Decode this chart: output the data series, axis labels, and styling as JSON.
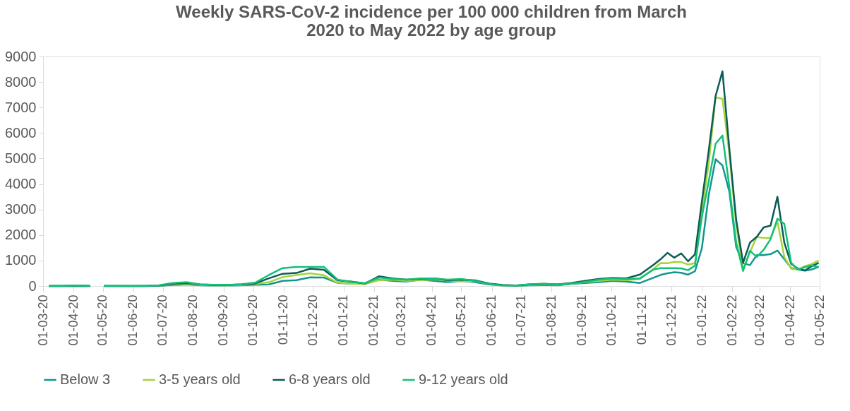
{
  "chart_data": {
    "type": "line",
    "title": "Weekly SARS-CoV-2 incidence per 100 000 children from March 2020 to May 2022 by age group",
    "x": [
      "2020-03-07",
      "2020-03-21",
      "2020-04-04",
      "2020-04-18",
      "2020-04-25",
      "2020-05-02",
      "2020-05-16",
      "2020-05-30",
      "2020-06-13",
      "2020-06-27",
      "2020-07-11",
      "2020-07-25",
      "2020-08-08",
      "2020-08-22",
      "2020-09-05",
      "2020-09-19",
      "2020-10-03",
      "2020-10-17",
      "2020-10-31",
      "2020-11-14",
      "2020-11-28",
      "2020-12-12",
      "2020-12-26",
      "2021-01-09",
      "2021-01-23",
      "2021-02-06",
      "2021-02-20",
      "2021-03-06",
      "2021-03-20",
      "2021-04-03",
      "2021-04-17",
      "2021-05-01",
      "2021-05-15",
      "2021-05-29",
      "2021-06-12",
      "2021-06-26",
      "2021-07-10",
      "2021-07-24",
      "2021-08-07",
      "2021-08-21",
      "2021-09-04",
      "2021-09-18",
      "2021-10-02",
      "2021-10-16",
      "2021-10-30",
      "2021-11-13",
      "2021-11-20",
      "2021-11-27",
      "2021-12-04",
      "2021-12-11",
      "2021-12-18",
      "2021-12-25",
      "2022-01-01",
      "2022-01-08",
      "2022-01-15",
      "2022-01-22",
      "2022-01-29",
      "2022-02-05",
      "2022-02-12",
      "2022-02-19",
      "2022-02-26",
      "2022-03-05",
      "2022-03-12",
      "2022-03-19",
      "2022-03-26",
      "2022-04-02",
      "2022-04-09",
      "2022-04-16",
      "2022-04-23",
      "2022-04-30"
    ],
    "series": [
      {
        "name": "Below 3",
        "color": "#15958f",
        "values": [
          0,
          0,
          10,
          0,
          null,
          0,
          0,
          0,
          0,
          10,
          40,
          60,
          30,
          20,
          20,
          30,
          50,
          60,
          200,
          230,
          340,
          330,
          120,
          100,
          80,
          250,
          200,
          170,
          250,
          200,
          150,
          200,
          150,
          60,
          20,
          10,
          30,
          40,
          30,
          80,
          120,
          150,
          200,
          170,
          120,
          330,
          435,
          500,
          540,
          520,
          445,
          575,
          1480,
          3560,
          4970,
          4730,
          3700,
          1530,
          890,
          820,
          1210,
          1210,
          1250,
          1390,
          1050,
          710,
          650,
          600,
          650,
          750
        ]
      },
      {
        "name": "3-5 years old",
        "color": "#a5d43c",
        "values": [
          null,
          null,
          null,
          null,
          null,
          null,
          null,
          null,
          null,
          20,
          60,
          90,
          40,
          30,
          30,
          40,
          80,
          150,
          350,
          430,
          500,
          420,
          130,
          90,
          80,
          230,
          250,
          200,
          230,
          260,
          220,
          180,
          200,
          80,
          30,
          20,
          40,
          60,
          50,
          100,
          150,
          200,
          250,
          230,
          280,
          680,
          900,
          890,
          950,
          940,
          840,
          900,
          2900,
          4800,
          7400,
          7340,
          5200,
          2400,
          640,
          1330,
          1930,
          1880,
          1880,
          2530,
          1140,
          680,
          640,
          780,
          860,
          1000
        ]
      },
      {
        "name": "6-8 years old",
        "color": "#0c5b56",
        "values": [
          0,
          0,
          10,
          0,
          null,
          0,
          0,
          0,
          0,
          20,
          80,
          120,
          60,
          40,
          40,
          60,
          100,
          300,
          480,
          510,
          680,
          640,
          220,
          170,
          100,
          380,
          300,
          250,
          280,
          300,
          230,
          250,
          220,
          100,
          40,
          20,
          60,
          80,
          60,
          120,
          200,
          280,
          320,
          300,
          450,
          840,
          1050,
          1300,
          1110,
          1280,
          970,
          1245,
          3300,
          5300,
          7450,
          8420,
          5390,
          2600,
          910,
          1700,
          1930,
          2300,
          2370,
          3500,
          1700,
          870,
          680,
          610,
          780,
          910
        ]
      },
      {
        "name": "9-12 years old",
        "color": "#10c178",
        "values": [
          0,
          10,
          20,
          10,
          null,
          10,
          10,
          0,
          10,
          30,
          120,
          150,
          60,
          50,
          40,
          70,
          130,
          430,
          700,
          750,
          750,
          750,
          250,
          160,
          110,
          330,
          280,
          250,
          300,
          300,
          250,
          280,
          200,
          80,
          30,
          20,
          70,
          90,
          60,
          100,
          160,
          250,
          300,
          270,
          300,
          650,
          700,
          700,
          700,
          690,
          620,
          800,
          2700,
          4100,
          5580,
          5900,
          3900,
          1700,
          590,
          1380,
          1140,
          1420,
          1840,
          2640,
          2440,
          910,
          640,
          740,
          810,
          740
        ]
      }
    ],
    "xlim": [
      "2020-03-01",
      "2022-05-01"
    ],
    "xticks": [
      {
        "value": "2020-03-01",
        "label": "01-03-20"
      },
      {
        "value": "2020-04-01",
        "label": "01-04-20"
      },
      {
        "value": "2020-05-01",
        "label": "01-05-20"
      },
      {
        "value": "2020-06-01",
        "label": "01-06-20"
      },
      {
        "value": "2020-07-01",
        "label": "01-07-20"
      },
      {
        "value": "2020-08-01",
        "label": "01-08-20"
      },
      {
        "value": "2020-09-01",
        "label": "01-09-20"
      },
      {
        "value": "2020-10-01",
        "label": "01-10-20"
      },
      {
        "value": "2020-11-01",
        "label": "01-11-20"
      },
      {
        "value": "2020-12-01",
        "label": "01-12-20"
      },
      {
        "value": "2021-01-01",
        "label": "01-01-21"
      },
      {
        "value": "2021-02-01",
        "label": "01-02-21"
      },
      {
        "value": "2021-03-01",
        "label": "01-03-21"
      },
      {
        "value": "2021-04-01",
        "label": "01-04-21"
      },
      {
        "value": "2021-05-01",
        "label": "01-05-21"
      },
      {
        "value": "2021-06-01",
        "label": "01-06-21"
      },
      {
        "value": "2021-07-01",
        "label": "01-07-21"
      },
      {
        "value": "2021-08-01",
        "label": "01-08-21"
      },
      {
        "value": "2021-09-01",
        "label": "01-09-21"
      },
      {
        "value": "2021-10-01",
        "label": "01-10-21"
      },
      {
        "value": "2021-11-01",
        "label": "01-11-21"
      },
      {
        "value": "2021-12-01",
        "label": "01-12-21"
      },
      {
        "value": "2022-01-01",
        "label": "01-01-22"
      },
      {
        "value": "2022-02-01",
        "label": "01-02-22"
      },
      {
        "value": "2022-03-01",
        "label": "01-03-22"
      },
      {
        "value": "2022-04-01",
        "label": "01-04-22"
      },
      {
        "value": "2022-05-01",
        "label": "01-05-22"
      }
    ],
    "ylim": [
      0,
      9000
    ],
    "yticks": [
      0,
      1000,
      2000,
      3000,
      4000,
      5000,
      6000,
      7000,
      8000,
      9000
    ],
    "legend": "bottom",
    "grid": false,
    "marker": "none"
  }
}
